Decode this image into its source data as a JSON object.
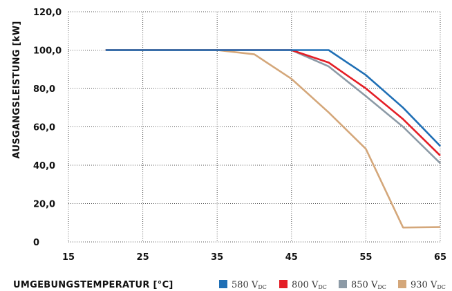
{
  "chart_data": {
    "type": "line",
    "xlabel": "UMGEBUNGSTEMPERATUR [°C]",
    "ylabel": "AUSGANGSLEISTUNG [kW]",
    "xlim": [
      15,
      65
    ],
    "ylim": [
      0,
      120
    ],
    "xticks": [
      15,
      25,
      35,
      45,
      55,
      65
    ],
    "xtick_labels": [
      "15",
      "25",
      "35",
      "45",
      "55",
      "65"
    ],
    "yticks": [
      0,
      20,
      40,
      60,
      80,
      100,
      120
    ],
    "ytick_labels": [
      "0",
      "20,0",
      "40,0",
      "60,0",
      "80,0",
      "100,0",
      "120,0"
    ],
    "grid": true,
    "legend_position": "bottom-right",
    "series": [
      {
        "name": "580 V",
        "name_sub": "DC",
        "color": "#1f6fb5",
        "x": [
          20,
          35,
          45,
          50,
          55,
          60,
          65
        ],
        "y": [
          100,
          100,
          100,
          100,
          87,
          70,
          50
        ]
      },
      {
        "name": "800 V",
        "name_sub": "DC",
        "color": "#e41e26",
        "x": [
          20,
          35,
          45,
          50,
          55,
          60,
          65
        ],
        "y": [
          100,
          100,
          100,
          93.5,
          80,
          64,
          45
        ]
      },
      {
        "name": "850 V",
        "name_sub": "DC",
        "color": "#8c9aa6",
        "x": [
          20,
          35,
          45,
          50,
          55,
          60,
          65
        ],
        "y": [
          100,
          100,
          100,
          91.5,
          76,
          60,
          41
        ]
      },
      {
        "name": "930 V",
        "name_sub": "DC",
        "color": "#d4a77a",
        "x": [
          20,
          35,
          40,
          45,
          50,
          55,
          60,
          65
        ],
        "y": [
          100,
          100,
          97.8,
          85,
          67.5,
          48.5,
          7.5,
          7.7
        ]
      }
    ]
  }
}
